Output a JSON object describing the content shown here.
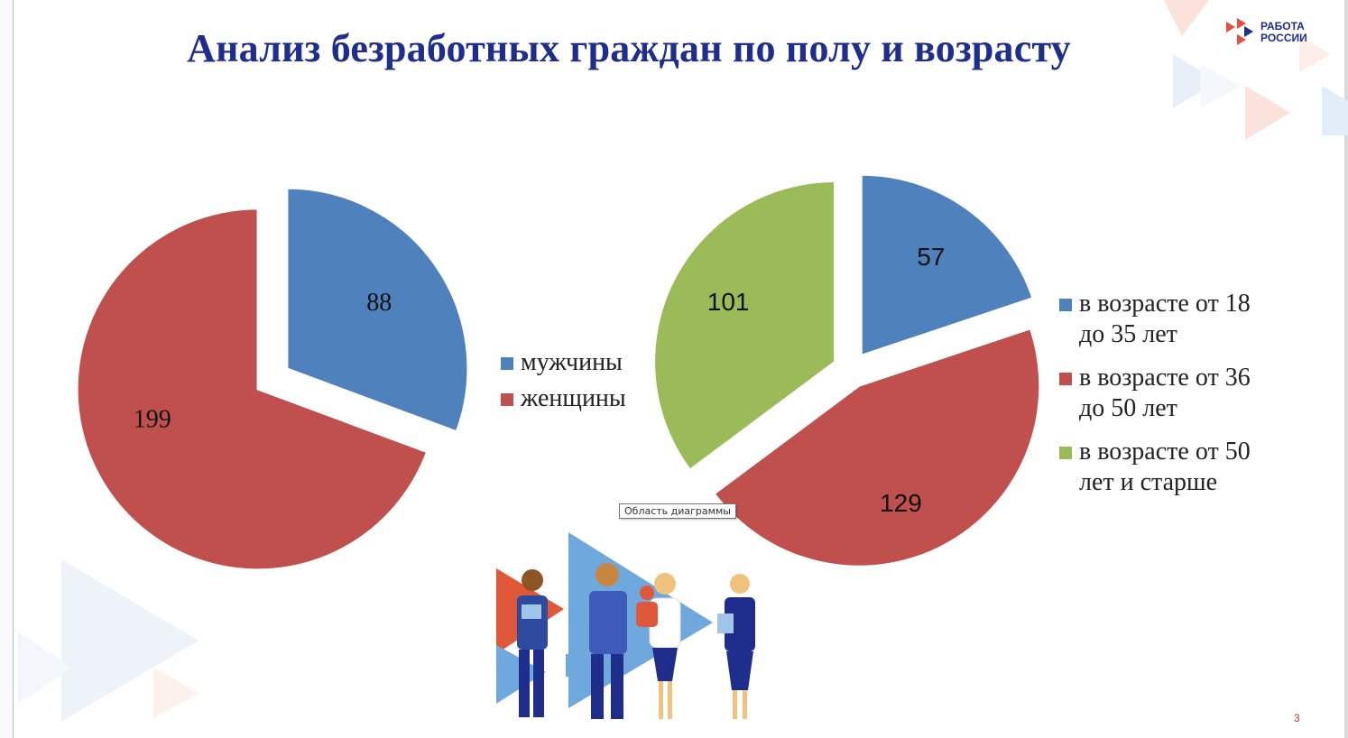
{
  "slide": {
    "title": "Анализ безработных граждан по полу и возрасту",
    "page_number": "3",
    "logo_text_line1": "РАБОТА",
    "logo_text_line2": "РОССИИ",
    "tooltip": "Область диаграммы"
  },
  "chart_data": [
    {
      "type": "pie",
      "exploded": true,
      "categories": [
        "мужчины",
        "женщины"
      ],
      "values": [
        88,
        199
      ],
      "colors": [
        "#4f81bd",
        "#c0504d"
      ],
      "legend_position": "right"
    },
    {
      "type": "pie",
      "exploded": true,
      "categories": [
        "в возрасте от 18 до 35 лет",
        "в возрасте от 36 до 50 лет",
        "в возрасте от 50 лет и старше"
      ],
      "legend_lines": [
        [
          "в возрасте от 18",
          "до 35 лет"
        ],
        [
          "в возрасте от 36",
          "до 50 лет"
        ],
        [
          "в возрасте от 50",
          "лет и старше"
        ]
      ],
      "values": [
        57,
        129,
        101
      ],
      "colors": [
        "#4f81bd",
        "#c0504d",
        "#9bbb59"
      ],
      "legend_position": "right"
    }
  ]
}
